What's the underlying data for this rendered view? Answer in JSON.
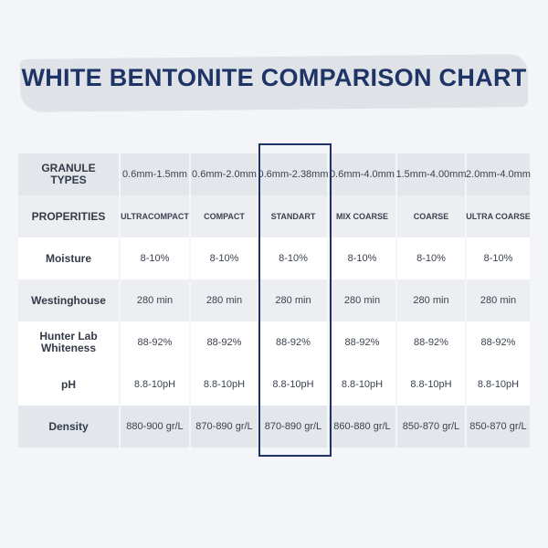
{
  "title": "WHITE BENTONITE COMPARISON CHART",
  "table": {
    "header": [
      "GRANULE TYPES",
      "0.6mm-1.5mm",
      "0.6mm-2.0mm",
      "0.6mm-2.38mm",
      "0.6mm-4.0mm",
      "1.5mm-4.00mm",
      "2.0mm-4.0mm"
    ],
    "rows": [
      [
        "PROPERITIES",
        "ULTRACOMPACT",
        "COMPACT",
        "STANDART",
        "MIX COARSE",
        "COARSE",
        "ULTRA COARSE"
      ],
      [
        "Moisture",
        "8-10%",
        "8-10%",
        "8-10%",
        "8-10%",
        "8-10%",
        "8-10%"
      ],
      [
        "Westinghouse",
        "280 min",
        "280 min",
        "280 min",
        "280 min",
        "280 min",
        "280 min"
      ],
      [
        "Hunter Lab Whiteness",
        "88-92%",
        "88-92%",
        "88-92%",
        "88-92%",
        "88-92%",
        "88-92%"
      ],
      [
        "pH",
        "8.8-10pH",
        "8.8-10pH",
        "8.8-10pH",
        "8.8-10pH",
        "8.8-10pH",
        "8.8-10pH"
      ],
      [
        "Density",
        "880-900 gr/L",
        "870-890 gr/L",
        "870-890 gr/L",
        "860-880 gr/L",
        "850-870 gr/L",
        "850-870 gr/L"
      ]
    ]
  }
}
